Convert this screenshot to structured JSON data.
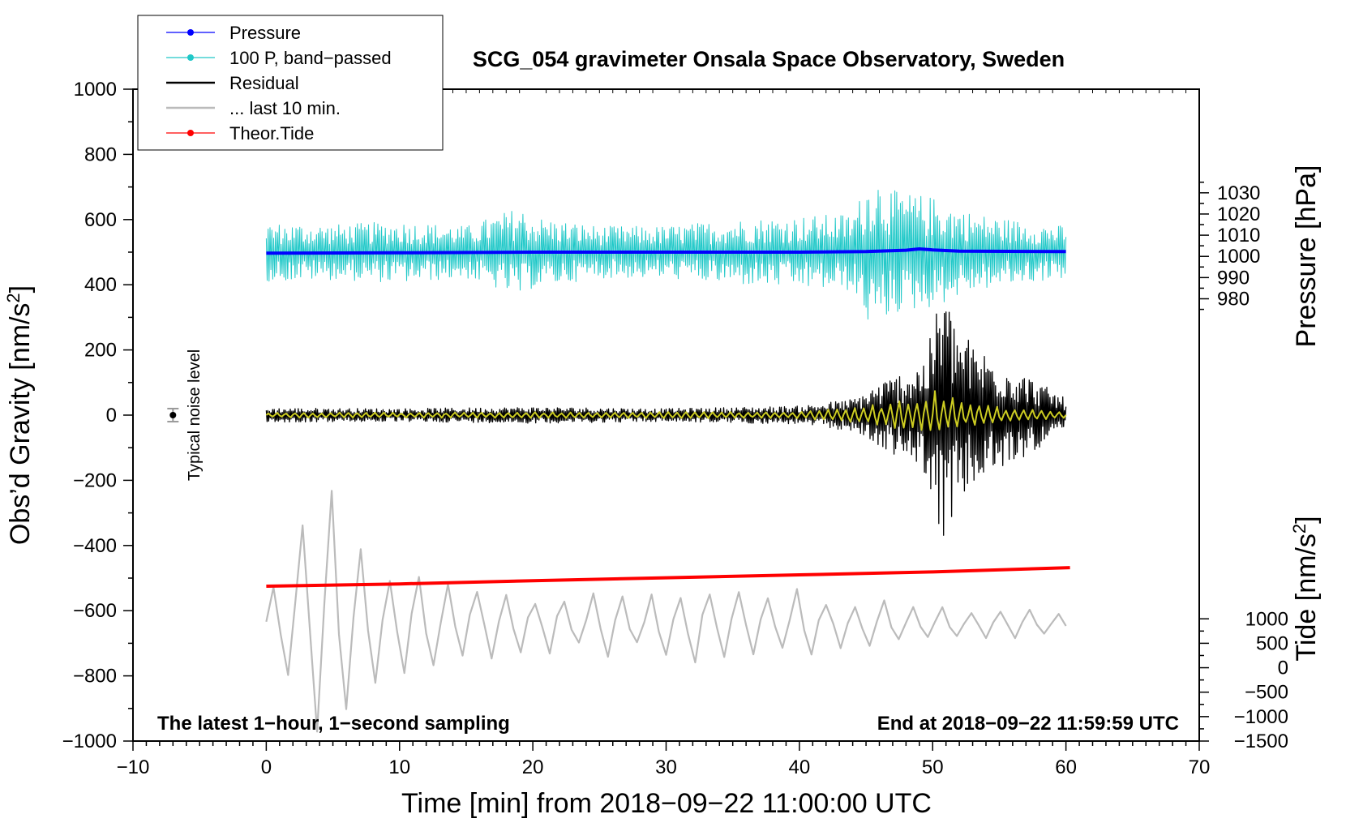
{
  "chart_data": {
    "type": "line",
    "title": "SCG_054 gravimeter Onsala Space Observatory, Sweden",
    "xlabel": "Time [min] from 2018−09−22 11:00:00 UTC",
    "ylabel_left": "Obs’d Gravity [nm/s",
    "ylabel_right_top": "Pressure [hPa]",
    "ylabel_right_bottom_prefix": "Tide [nm/s",
    "superscript": "2",
    "closing_bracket": "]",
    "xlim": [
      -10,
      70
    ],
    "ylim_left": [
      -1000,
      1000
    ],
    "pressure_axis": {
      "ticks": [
        980,
        990,
        1000,
        1010,
        1020,
        1030
      ],
      "labels": [
        "980",
        "990",
        "1000",
        "1010",
        "1020",
        "1030"
      ],
      "value_at_gravity_500": 1002,
      "hpa_per_nms2": 0.1538
    },
    "tide_axis": {
      "ticks": [
        -1500,
        -1000,
        -500,
        0,
        500,
        1000
      ],
      "labels": [
        "−1500",
        "−1000",
        "−500",
        "0",
        "500",
        "1000"
      ],
      "value_at_gravity_minus_1000": -1500,
      "nms2_tide_per_nms2": 6.667
    },
    "x_ticks": [
      -10,
      0,
      10,
      20,
      30,
      40,
      50,
      60,
      70
    ],
    "x_tick_labels": [
      "−10",
      "0",
      "10",
      "20",
      "30",
      "40",
      "50",
      "60",
      "70"
    ],
    "y_ticks": [
      -1000,
      -800,
      -600,
      -400,
      -200,
      0,
      200,
      400,
      600,
      800,
      1000
    ],
    "y_tick_labels": [
      "−1000",
      "−800",
      "−600",
      "−400",
      "−200",
      "0",
      "200",
      "400",
      "600",
      "800",
      "1000"
    ],
    "legend": [
      {
        "name": "Pressure",
        "color": "#0000ff",
        "marker": true
      },
      {
        "name": "100 P, band−passed",
        "color": "#20c8c8",
        "marker": true
      },
      {
        "name": "Residual",
        "color": "#000000",
        "marker": false
      },
      {
        "name": "... last 10 min.",
        "color": "#bbbbbb",
        "marker": false
      },
      {
        "name": "Theor.Tide",
        "color": "#ff0000",
        "marker": true
      }
    ],
    "annotations": {
      "bottom_left": "The latest 1−hour, 1−second sampling",
      "bottom_right": "End at 2018−09−22 11:59:59 UTC",
      "noise": "Typical noise level"
    },
    "noise_marker": {
      "x": -7,
      "y": 0,
      "err": 20
    },
    "series": [
      {
        "name": "Pressure",
        "color": "#0000ff",
        "x": [
          0,
          10,
          20,
          30,
          40,
          45,
          48,
          49,
          50,
          52,
          60
        ],
        "y": [
          497,
          498,
          500,
          500,
          500,
          502,
          506,
          510,
          507,
          503,
          502
        ]
      },
      {
        "name": "Theor.Tide",
        "color": "#ff0000",
        "x": [
          0,
          10,
          20,
          30,
          40,
          50,
          60.3
        ],
        "y": [
          -525,
          -518,
          -508,
          -499,
          -490,
          -481,
          -468
        ]
      },
      {
        "name": "100 P, band−passed",
        "color": "#20c8c8",
        "center": 500,
        "x_range": [
          0,
          60
        ],
        "envelope_x": [
          0,
          5,
          10,
          15,
          19,
          20,
          25,
          30,
          35,
          40,
          44,
          45.5,
          47,
          50,
          53,
          56,
          60
        ],
        "envelope_amp": [
          90,
          85,
          95,
          80,
          140,
          110,
          80,
          80,
          100,
          110,
          120,
          250,
          190,
          170,
          120,
          100,
          80
        ],
        "cycles": 430
      },
      {
        "name": "Residual",
        "color": "#000000",
        "center": 0,
        "x_range": [
          0,
          60
        ],
        "envelope_x": [
          0,
          10,
          20,
          30,
          40,
          44,
          46,
          48,
          49.5,
          50.8,
          51.5,
          53,
          56,
          60
        ],
        "envelope_amp": [
          22,
          20,
          25,
          20,
          28,
          50,
          100,
          140,
          180,
          420,
          300,
          220,
          150,
          50
        ],
        "cycles": 500
      },
      {
        "name": "Residual (filtered)",
        "color": "#cccc22",
        "center": 0,
        "x_range": [
          0,
          60
        ],
        "envelope_x": [
          0,
          40,
          44,
          48,
          50.5,
          52,
          56,
          60
        ],
        "envelope_amp": [
          8,
          10,
          25,
          45,
          80,
          40,
          20,
          10
        ],
        "cycles": 180
      },
      {
        "name": "... last 10 min.",
        "color": "#bbbbbb",
        "center": -640,
        "x_range": [
          0,
          60
        ],
        "envelope_x": [
          0,
          2,
          4,
          5,
          6,
          8,
          12,
          20,
          28,
          30,
          35,
          40,
          45,
          50,
          60
        ],
        "envelope_amp": [
          80,
          300,
          420,
          450,
          300,
          200,
          150,
          110,
          100,
          150,
          120,
          110,
          80,
          60,
          40
        ],
        "cycles": 55
      }
    ]
  }
}
